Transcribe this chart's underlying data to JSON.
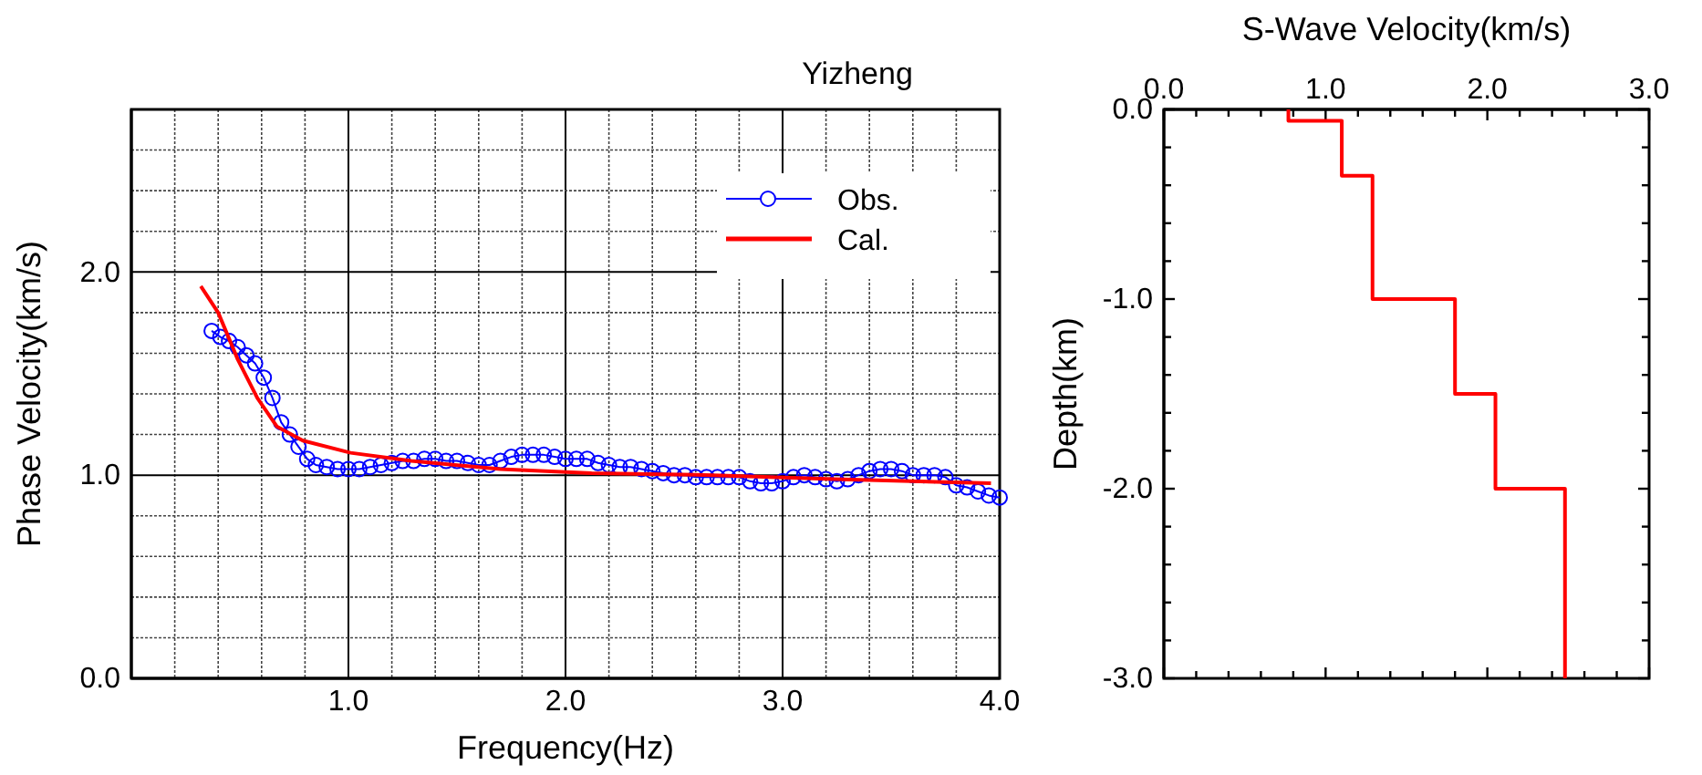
{
  "chart_data": [
    {
      "type": "line",
      "title": "Yizheng",
      "xlabel": "Frequency(Hz)",
      "ylabel": "Phase Velocity(km/s)",
      "xlim": [
        0,
        4
      ],
      "ylim": [
        0,
        2.8
      ],
      "xticks": [
        {
          "value": 0.2,
          "label": null
        },
        {
          "value": 0.4,
          "label": null
        },
        {
          "value": 0.6,
          "label": null
        },
        {
          "value": 0.8,
          "label": null
        },
        {
          "value": 1,
          "label": "1.0"
        },
        {
          "value": 1.2,
          "label": null
        },
        {
          "value": 1.4,
          "label": null
        },
        {
          "value": 1.6,
          "label": null
        },
        {
          "value": 1.8,
          "label": null
        },
        {
          "value": 2,
          "label": "2.0"
        },
        {
          "value": 2.2,
          "label": null
        },
        {
          "value": 2.4,
          "label": null
        },
        {
          "value": 2.6,
          "label": null
        },
        {
          "value": 2.8,
          "label": null
        },
        {
          "value": 3,
          "label": "3.0"
        },
        {
          "value": 3.2,
          "label": null
        },
        {
          "value": 3.4,
          "label": null
        },
        {
          "value": 3.6,
          "label": null
        },
        {
          "value": 3.8,
          "label": null
        },
        {
          "value": 4,
          "label": "4.0"
        }
      ],
      "yticks": [
        {
          "value": 0,
          "label": "0.0"
        },
        {
          "value": 0.2,
          "label": null
        },
        {
          "value": 0.4,
          "label": null
        },
        {
          "value": 0.6,
          "label": null
        },
        {
          "value": 0.8,
          "label": null
        },
        {
          "value": 1,
          "label": "1.0"
        },
        {
          "value": 1.2,
          "label": null
        },
        {
          "value": 1.4,
          "label": null
        },
        {
          "value": 1.6,
          "label": null
        },
        {
          "value": 1.8,
          "label": null
        },
        {
          "value": 2,
          "label": "2.0"
        },
        {
          "value": 2.2,
          "label": null
        },
        {
          "value": 2.4,
          "label": null
        },
        {
          "value": 2.6,
          "label": null
        },
        {
          "value": 2.8,
          "label": null
        }
      ],
      "grid": true,
      "legend": "top right",
      "series": [
        {
          "name": "Obs.",
          "color": "#0000ff",
          "marker": "circle",
          "x": [
            0.37,
            0.41,
            0.45,
            0.49,
            0.53,
            0.57,
            0.61,
            0.65,
            0.69,
            0.73,
            0.77,
            0.81,
            0.85,
            0.9,
            0.95,
            1.0,
            1.05,
            1.1,
            1.15,
            1.2,
            1.25,
            1.3,
            1.35,
            1.4,
            1.45,
            1.5,
            1.55,
            1.6,
            1.65,
            1.7,
            1.75,
            1.8,
            1.85,
            1.9,
            1.95,
            2.0,
            2.05,
            2.1,
            2.15,
            2.2,
            2.25,
            2.3,
            2.35,
            2.4,
            2.45,
            2.5,
            2.55,
            2.6,
            2.65,
            2.7,
            2.75,
            2.8,
            2.85,
            2.9,
            2.95,
            3.0,
            3.05,
            3.1,
            3.15,
            3.2,
            3.25,
            3.3,
            3.35,
            3.4,
            3.45,
            3.5,
            3.55,
            3.6,
            3.65,
            3.7,
            3.75,
            3.8,
            3.85,
            3.9,
            3.95,
            4.0
          ],
          "values": [
            1.71,
            1.68,
            1.66,
            1.63,
            1.59,
            1.55,
            1.48,
            1.38,
            1.26,
            1.2,
            1.14,
            1.08,
            1.05,
            1.04,
            1.03,
            1.03,
            1.03,
            1.04,
            1.05,
            1.06,
            1.07,
            1.07,
            1.08,
            1.08,
            1.07,
            1.07,
            1.06,
            1.05,
            1.05,
            1.07,
            1.09,
            1.1,
            1.1,
            1.1,
            1.09,
            1.08,
            1.08,
            1.08,
            1.06,
            1.05,
            1.04,
            1.04,
            1.03,
            1.02,
            1.01,
            1.0,
            1.0,
            0.99,
            0.99,
            0.99,
            0.99,
            0.99,
            0.97,
            0.96,
            0.96,
            0.97,
            0.99,
            1.0,
            0.99,
            0.98,
            0.97,
            0.98,
            1.0,
            1.02,
            1.03,
            1.03,
            1.02,
            1.0,
            1.0,
            1.0,
            0.99,
            0.95,
            0.94,
            0.92,
            0.9,
            0.89
          ]
        },
        {
          "name": "Cal.",
          "color": "#ff0000",
          "marker": "none",
          "x": [
            0.32,
            0.4,
            0.49,
            0.58,
            0.67,
            0.79,
            1.01,
            1.29,
            1.7,
            2.12,
            2.68,
            3.24,
            3.96
          ],
          "values": [
            1.93,
            1.8,
            1.57,
            1.38,
            1.24,
            1.17,
            1.11,
            1.07,
            1.03,
            1.01,
            1.0,
            0.98,
            0.96
          ]
        }
      ]
    },
    {
      "type": "line",
      "xlabel": "S-Wave Velocity(km/s)",
      "ylabel": "Depth(km)",
      "xlim": [
        0,
        3
      ],
      "ylim": [
        -3,
        0
      ],
      "xticks": [
        {
          "value": 0,
          "label": "0.0"
        },
        {
          "value": 0.2,
          "label": null
        },
        {
          "value": 0.4,
          "label": null
        },
        {
          "value": 0.6,
          "label": null
        },
        {
          "value": 0.8,
          "label": null
        },
        {
          "value": 1,
          "label": "1.0"
        },
        {
          "value": 1.2,
          "label": null
        },
        {
          "value": 1.4,
          "label": null
        },
        {
          "value": 1.6,
          "label": null
        },
        {
          "value": 1.8,
          "label": null
        },
        {
          "value": 2,
          "label": "2.0"
        },
        {
          "value": 2.2,
          "label": null
        },
        {
          "value": 2.4,
          "label": null
        },
        {
          "value": 2.6,
          "label": null
        },
        {
          "value": 2.8,
          "label": null
        },
        {
          "value": 3,
          "label": "3.0"
        }
      ],
      "yticks": [
        {
          "value": -3,
          "label": "-3.0"
        },
        {
          "value": -2.8,
          "label": null
        },
        {
          "value": -2.6,
          "label": null
        },
        {
          "value": -2.4,
          "label": null
        },
        {
          "value": -2.2,
          "label": null
        },
        {
          "value": -2,
          "label": "-2.0"
        },
        {
          "value": -1.8,
          "label": null
        },
        {
          "value": -1.6,
          "label": null
        },
        {
          "value": -1.4,
          "label": null
        },
        {
          "value": -1.2,
          "label": null
        },
        {
          "value": -1,
          "label": "-1.0"
        },
        {
          "value": -0.8,
          "label": null
        },
        {
          "value": -0.6,
          "label": null
        },
        {
          "value": -0.4,
          "label": null
        },
        {
          "value": -0.2,
          "label": null
        },
        {
          "value": 0,
          "label": "0.0"
        }
      ],
      "series": [
        {
          "color": "#ff0000",
          "x": [
            0.77,
            0.77,
            1.1,
            1.1,
            1.29,
            1.29,
            1.8,
            1.8,
            2.05,
            2.05,
            2.48,
            2.48
          ],
          "values": [
            0,
            -0.06,
            -0.06,
            -0.35,
            -0.35,
            -1.0,
            -1.0,
            -1.5,
            -1.5,
            -2.0,
            -2.0,
            -3.0
          ]
        }
      ]
    }
  ]
}
